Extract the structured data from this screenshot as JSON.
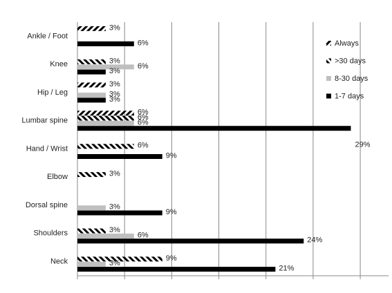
{
  "chart_data": {
    "type": "bar",
    "orientation": "horizontal",
    "categories": [
      "Ankle / Foot",
      "Knee",
      "Hip / Leg",
      "Lumbar spine",
      "Hand / Wrist",
      "Elbow",
      "Dorsal spine",
      "Shoulders",
      "Neck"
    ],
    "series": [
      {
        "name": "Always",
        "color": "#000000",
        "hatch": "forward",
        "values": [
          3,
          null,
          3,
          6,
          null,
          null,
          null,
          null,
          null
        ],
        "value_labels": [
          "3%",
          null,
          "3%",
          "6%",
          null,
          null,
          null,
          null,
          null
        ]
      },
      {
        "name": ">30 days",
        "color": "#000000",
        "hatch": "backward",
        "values": [
          null,
          3,
          null,
          6,
          6,
          3,
          null,
          3,
          9
        ],
        "value_labels": [
          null,
          "3%",
          null,
          "6%",
          "6%",
          "3%",
          null,
          "3%",
          "9%"
        ]
      },
      {
        "name": "8-30 days",
        "color": "#bfbfbf",
        "values": [
          null,
          6,
          3,
          6,
          null,
          null,
          3,
          6,
          3
        ],
        "value_labels": [
          null,
          "6%",
          "3%",
          "6%",
          null,
          null,
          "3%",
          "6%",
          "3%"
        ]
      },
      {
        "name": "1-7 days",
        "color": "#000000",
        "values": [
          6,
          3,
          3,
          29,
          9,
          null,
          9,
          24,
          21
        ],
        "value_labels": [
          "6%",
          "3%",
          "3%",
          "29%",
          "9%",
          null,
          "9%",
          "24%",
          "21%"
        ]
      }
    ],
    "xlim": [
      0,
      33
    ],
    "xticks": [
      0,
      5,
      10,
      15,
      20,
      25,
      30
    ],
    "grid": true,
    "legend": "right"
  }
}
